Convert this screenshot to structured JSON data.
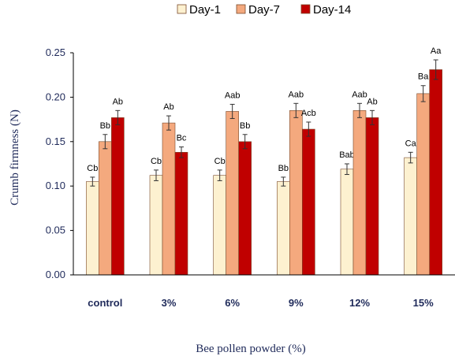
{
  "chart_data": {
    "type": "bar",
    "title": "",
    "xlabel": "Bee pollen powder (%)",
    "ylabel": "Crumb firmness (N)",
    "ylim": [
      0,
      0.25
    ],
    "yticks": [
      "0.00",
      "0.05",
      "0.10",
      "0.15",
      "0.20",
      "0.25"
    ],
    "categories": [
      "control",
      "3%",
      "6%",
      "9%",
      "12%",
      "15%"
    ],
    "legend_position": "top",
    "grid": false,
    "series": [
      {
        "name": "Day-1",
        "color": "#fdf1d0",
        "values": [
          0.105,
          0.112,
          0.112,
          0.105,
          0.119,
          0.132
        ],
        "errors": [
          0.005,
          0.006,
          0.006,
          0.005,
          0.006,
          0.006
        ],
        "labels": [
          "Cb",
          "Cb",
          "Cb",
          "Bb",
          "Bab",
          "Ca"
        ]
      },
      {
        "name": "Day-7",
        "color": "#f4a97e",
        "values": [
          0.15,
          0.171,
          0.184,
          0.185,
          0.185,
          0.204
        ],
        "errors": [
          0.008,
          0.008,
          0.008,
          0.008,
          0.008,
          0.009
        ],
        "labels": [
          "Bb",
          "Ab",
          "Aab",
          "Aab",
          "Aab",
          "Ba"
        ]
      },
      {
        "name": "Day-14",
        "color": "#c00000",
        "values": [
          0.177,
          0.138,
          0.15,
          0.164,
          0.177,
          0.231
        ],
        "errors": [
          0.008,
          0.006,
          0.008,
          0.008,
          0.008,
          0.011
        ],
        "labels": [
          "Ab",
          "Bc",
          "Bb",
          "Acb",
          "Ab",
          "Aa"
        ]
      }
    ]
  }
}
